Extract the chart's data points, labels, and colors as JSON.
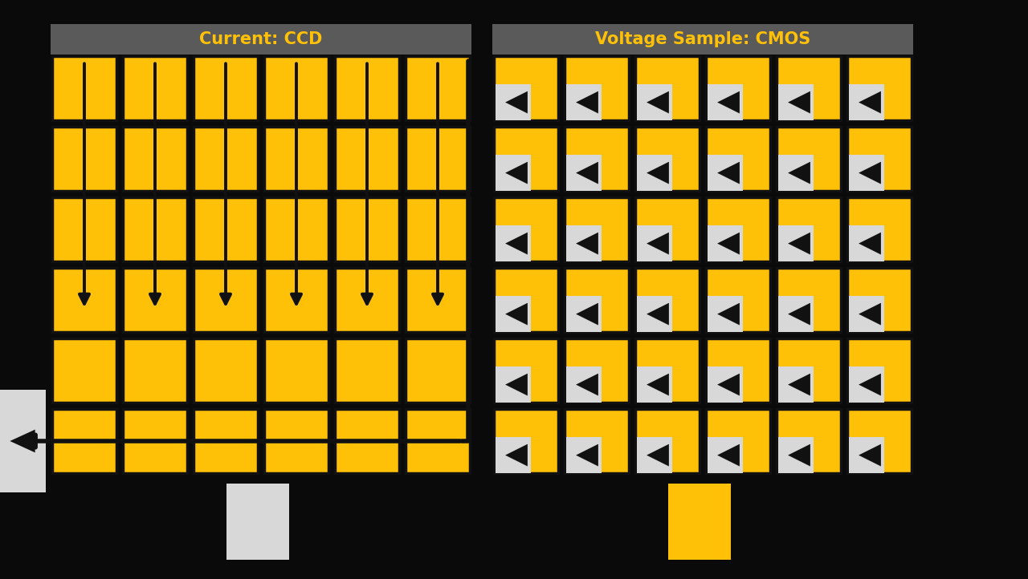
{
  "bg_color": "#0a0a0a",
  "yellow": "#FFC107",
  "light_gray": "#D8D8D8",
  "ccd_title": "Current: CCD",
  "cmos_title": "Voltage Sample: CMOS",
  "title_bg": "#5a5a5a",
  "title_color": "#FFC107",
  "ccd_cols": 6,
  "ccd_rows": 6,
  "cmos_cols": 6,
  "cmos_rows": 6
}
